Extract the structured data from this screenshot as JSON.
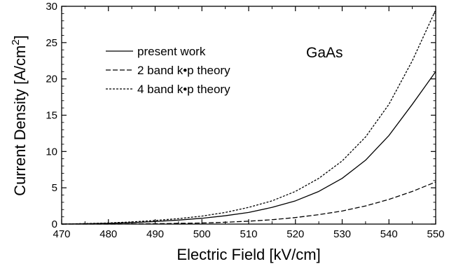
{
  "chart_data": {
    "type": "line",
    "xlabel": "Electric Field [kV/cm]",
    "ylabel": "Current Density [A/cm",
    "ylabel_sup": "2",
    "ylabel_end": "]",
    "xlim": [
      470,
      550
    ],
    "ylim": [
      0,
      30
    ],
    "x_ticks": [
      "470",
      "480",
      "490",
      "500",
      "510",
      "520",
      "530",
      "540",
      "550"
    ],
    "y_ticks": [
      "0",
      "5",
      "10",
      "15",
      "20",
      "25",
      "30"
    ],
    "annotation": "GaAs",
    "grid": false,
    "legend_position": "top-left",
    "x": [
      470,
      475,
      480,
      485,
      490,
      495,
      500,
      505,
      510,
      515,
      520,
      525,
      530,
      535,
      540,
      545,
      550
    ],
    "series": [
      {
        "name": "present work",
        "style": "solid",
        "values": [
          0.0,
          0.05,
          0.1,
          0.2,
          0.35,
          0.55,
          0.8,
          1.15,
          1.6,
          2.3,
          3.2,
          4.5,
          6.3,
          8.8,
          12.2,
          16.5,
          21.0
        ]
      },
      {
        "name": "2 band k•p theory",
        "style": "dashed",
        "values": [
          0.0,
          0.0,
          0.0,
          0.02,
          0.05,
          0.1,
          0.15,
          0.25,
          0.4,
          0.6,
          0.9,
          1.3,
          1.8,
          2.5,
          3.4,
          4.5,
          5.8
        ]
      },
      {
        "name": "4 band k•p theory",
        "style": "dotted",
        "values": [
          0.0,
          0.07,
          0.15,
          0.3,
          0.5,
          0.75,
          1.1,
          1.6,
          2.3,
          3.2,
          4.5,
          6.3,
          8.7,
          12.0,
          16.5,
          22.5,
          29.5
        ]
      }
    ]
  }
}
